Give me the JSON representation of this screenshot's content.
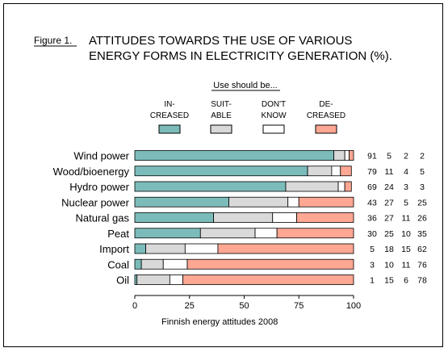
{
  "figure": {
    "label": "Figure 1.",
    "title_line1": "ATTITUDES TOWARDS THE USE OF VARIOUS",
    "title_line2": "ENERGY FORMS IN ELECTRICITY GENERATION (%)."
  },
  "legend": {
    "heading": "Use should be...",
    "items": [
      {
        "line1": "IN-",
        "line2": "CREASED",
        "color": "#7bbcbb"
      },
      {
        "line1": "SUIT-",
        "line2": "ABLE",
        "color": "#d9d9d9"
      },
      {
        "line1": "DON'T",
        "line2": "KNOW",
        "color": "#ffffff"
      },
      {
        "line1": "DE-",
        "line2": "CREASED",
        "color": "#ffa793"
      }
    ]
  },
  "chart_data": {
    "type": "bar",
    "orientation": "horizontal",
    "stacked": true,
    "categories": [
      "Wind power",
      "Wood/bioenergy",
      "Hydro power",
      "Nuclear power",
      "Natural gas",
      "Peat",
      "Import",
      "Coal",
      "Oil"
    ],
    "series": [
      {
        "name": "IN-CREASED",
        "values": [
          91,
          79,
          69,
          43,
          36,
          30,
          5,
          3,
          1
        ]
      },
      {
        "name": "SUIT-ABLE",
        "values": [
          5,
          11,
          24,
          27,
          27,
          25,
          18,
          10,
          15
        ]
      },
      {
        "name": "DON'T KNOW",
        "values": [
          2,
          4,
          3,
          5,
          11,
          10,
          15,
          11,
          6
        ]
      },
      {
        "name": "DE-CREASED",
        "values": [
          2,
          5,
          3,
          25,
          26,
          35,
          62,
          76,
          78
        ]
      }
    ],
    "xlim": [
      0,
      100
    ],
    "xticks": [
      "0",
      "25",
      "50",
      "75",
      "100"
    ],
    "footnote": "Finnish energy attitudes 2008"
  }
}
